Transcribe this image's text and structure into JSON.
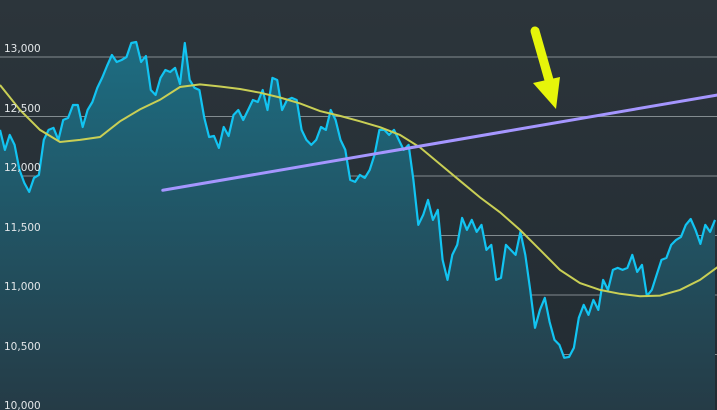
{
  "chart_data": {
    "type": "area",
    "title": "",
    "xlabel": "",
    "ylabel": "",
    "ylim": [
      10000,
      13400
    ],
    "yticks": [
      10000,
      10500,
      11000,
      11500,
      12000,
      12500,
      13000
    ],
    "ytick_labels": [
      "10,000",
      "10,500",
      "11,000",
      "11,500",
      "12,000",
      "12,500",
      "13,000"
    ],
    "grid": true,
    "legend": "none",
    "colors": {
      "price": "#12c4f2",
      "moving_average": "#c9cf55",
      "trendline": "#a596ff",
      "arrow": "#e6f50a",
      "area_top": "#1d6d82",
      "area_bottom": "#253b46",
      "grid": "#9aa3a6"
    },
    "series": [
      {
        "role": "price",
        "values": [
          12387,
          12219,
          12345,
          12261,
          12051,
          11942,
          11866,
          11984,
          12009,
          12303,
          12387,
          12404,
          12303,
          12471,
          12488,
          12597,
          12597,
          12412,
          12555,
          12622,
          12740,
          12824,
          12924,
          13017,
          12958,
          12975,
          13000,
          13118,
          13126,
          12958,
          13008,
          12723,
          12681,
          12824,
          12891,
          12874,
          12908,
          12773,
          13118,
          12807,
          12740,
          12723,
          12488,
          12328,
          12336,
          12236,
          12412,
          12336,
          12513,
          12555,
          12471,
          12555,
          12639,
          12622,
          12723,
          12555,
          12824,
          12807,
          12555,
          12639,
          12656,
          12639,
          12387,
          12303,
          12261,
          12303,
          12412,
          12387,
          12555,
          12471,
          12303,
          12219,
          11967,
          11950,
          12009,
          11984,
          12051,
          12177,
          12387,
          12387,
          12345,
          12387,
          12303,
          12219,
          12261,
          11967,
          11589,
          11673,
          11799,
          11631,
          11715,
          11295,
          11127,
          11337,
          11421,
          11648,
          11547,
          11631,
          11530,
          11589,
          11379,
          11421,
          11127,
          11144,
          11421,
          11379,
          11337,
          11530,
          11337,
          11043,
          10724,
          10875,
          10976,
          10774,
          10623,
          10581,
          10472,
          10480,
          10556,
          10808,
          10917,
          10833,
          10959,
          10875,
          11127,
          11043,
          11211,
          11228,
          11211,
          11228,
          11337,
          11194,
          11253,
          10992,
          11043,
          11169,
          11295,
          11312,
          11421,
          11463,
          11488,
          11589,
          11639,
          11547,
          11429,
          11589,
          11530,
          11631
        ]
      },
      {
        "role": "moving_average",
        "values": [
          12765,
          12555,
          12387,
          12286,
          12303,
          12328,
          12460,
          12560,
          12640,
          12748,
          12770,
          12752,
          12731,
          12700,
          12660,
          12610,
          12545,
          12505,
          12460,
          12410,
          12345,
          12240,
          12100,
          11960,
          11820,
          11695,
          11547,
          11380,
          11210,
          11100,
          11043,
          11010,
          10990,
          10995,
          11043,
          11127,
          11250
        ]
      }
    ],
    "trendline": {
      "start": {
        "position": 0.227,
        "value": 11880
      },
      "end": {
        "position": 1.0,
        "value": 12680
      }
    },
    "annotation": {
      "type": "arrow",
      "points_to": "trendline"
    }
  }
}
